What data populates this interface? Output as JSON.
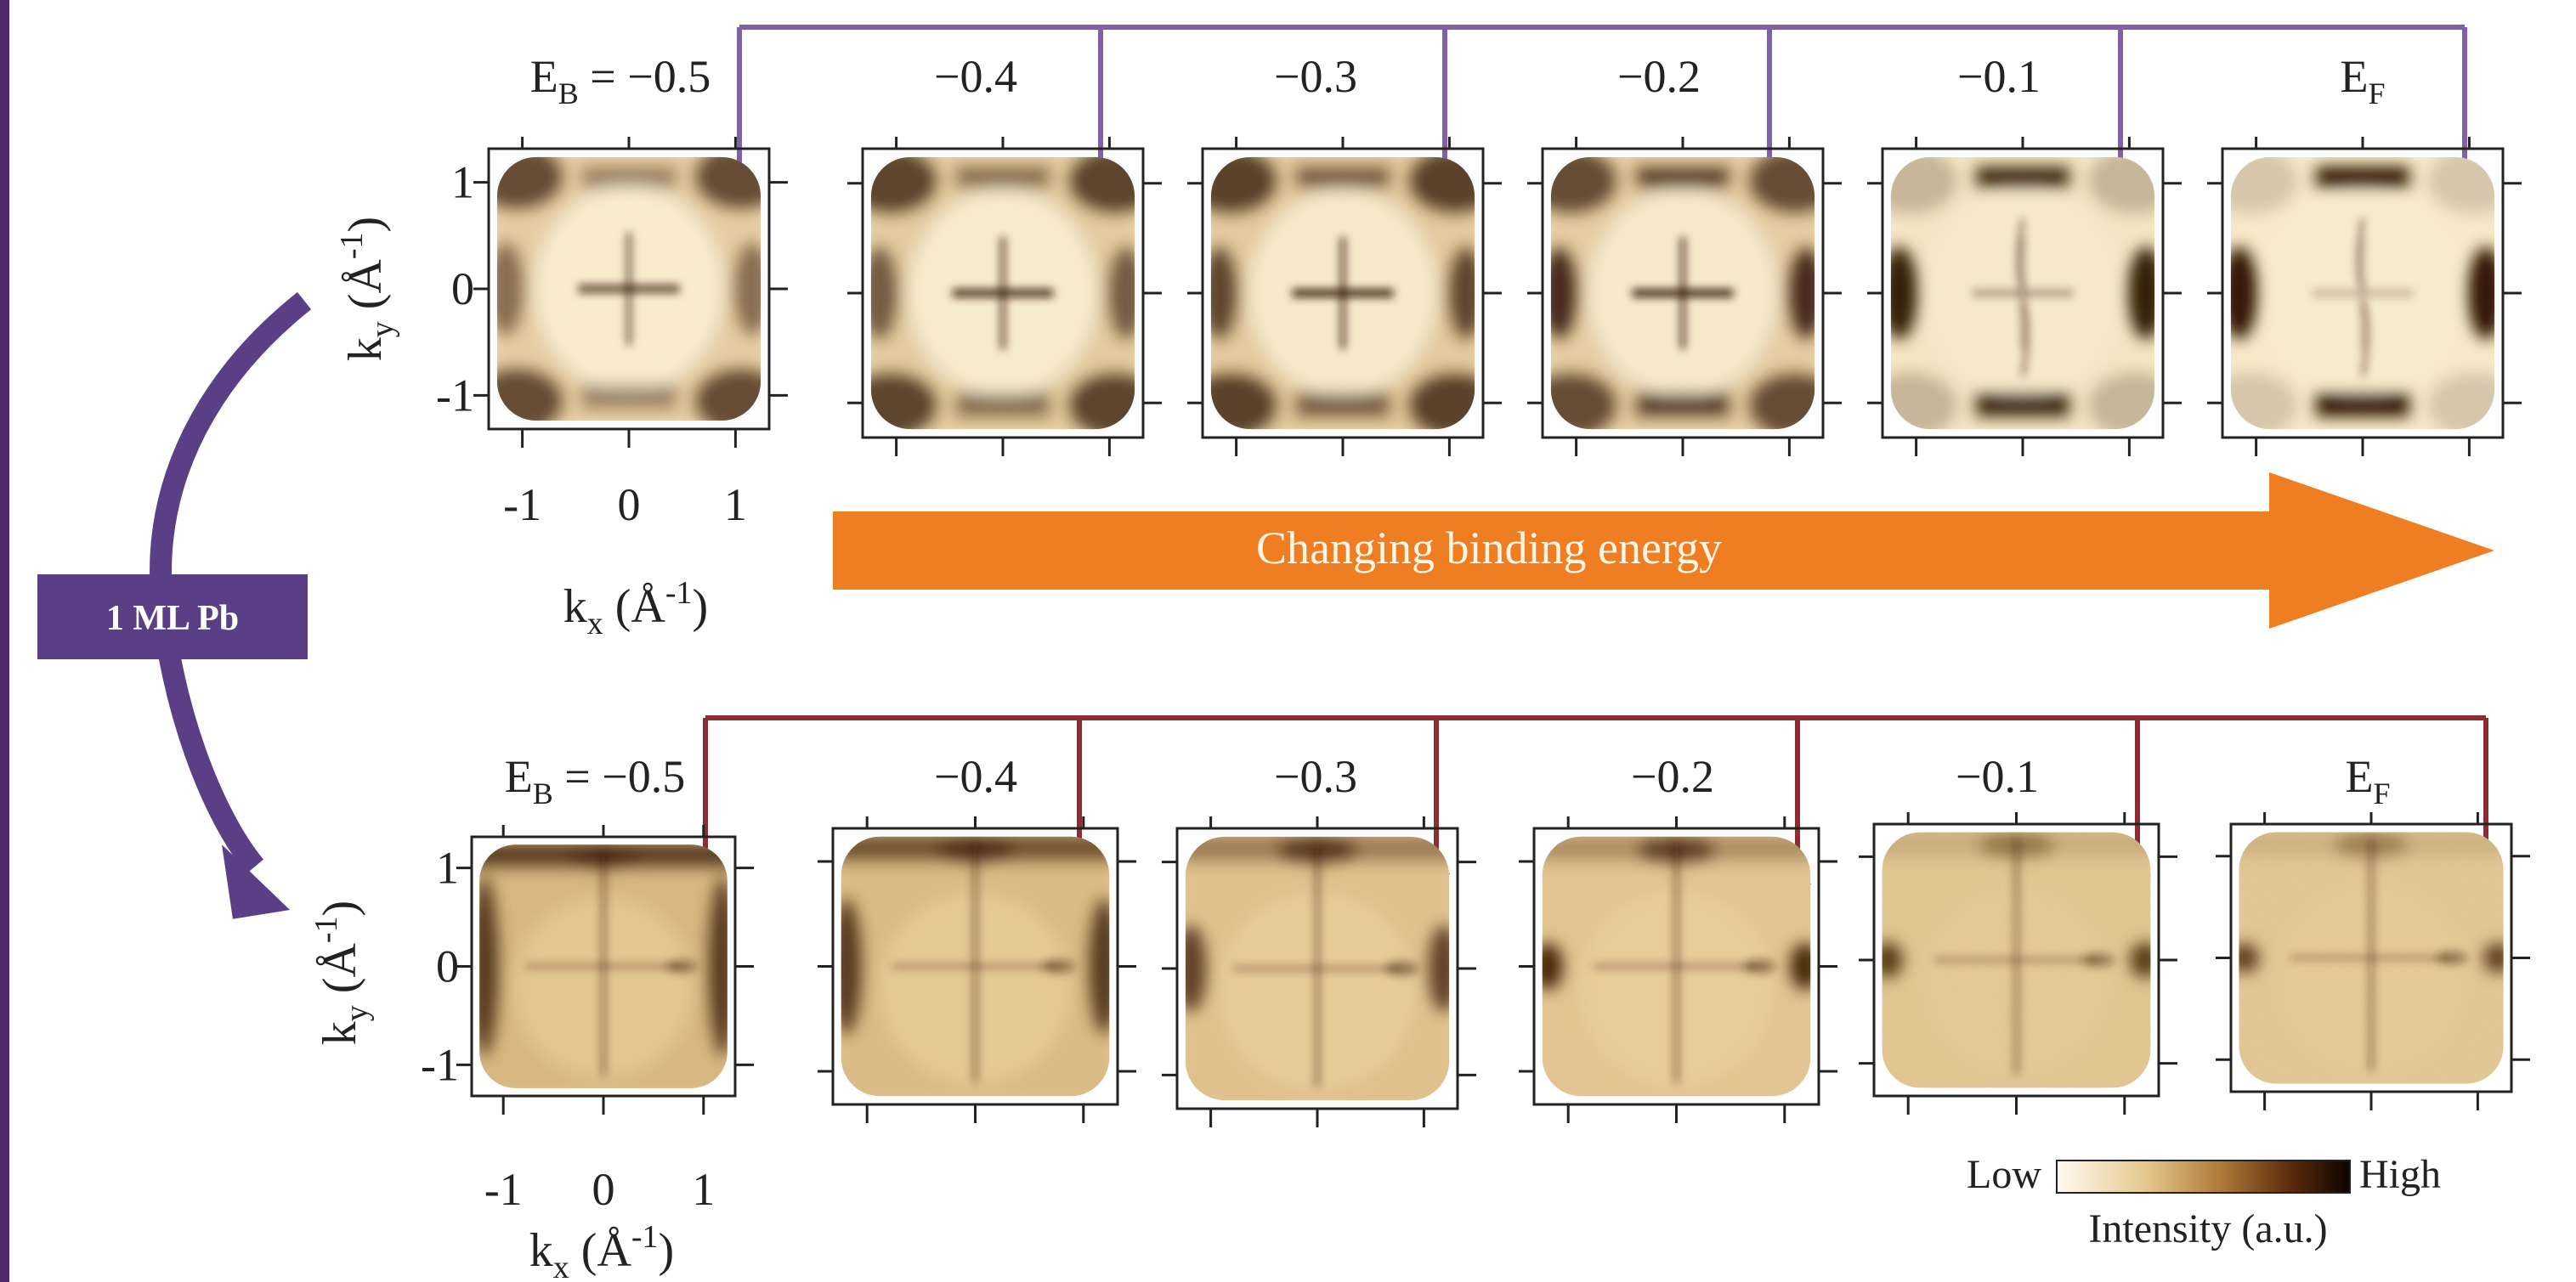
{
  "colors": {
    "left_bar": "#4e2a6b",
    "purple_connector": "#8060a6",
    "purple_arrow": "#5b3f86",
    "red_connector": "#8b2e33",
    "orange_arrow": "#ef7d22",
    "top_map_base": "#fbf1d6",
    "top_map_dark": "#2b1205",
    "bottom_map_base": "#ecd3a3",
    "bottom_map_dark": "#3a1a05",
    "axis": "#222222"
  },
  "side_label": "1 ML Pb",
  "banner_label": "Changing binding energy",
  "energy_label_prefix": "E",
  "energy_label_sub": "B",
  "energy_label_eq": " = ",
  "top_row": {
    "panels": [
      {
        "value": "−0.5"
      },
      {
        "value": "−0.4"
      },
      {
        "value": "−0.3"
      },
      {
        "value": "−0.2"
      },
      {
        "value": "−0.1"
      },
      {
        "value": "E",
        "sub": "F"
      }
    ]
  },
  "bottom_row": {
    "panels": [
      {
        "value": "−0.5"
      },
      {
        "value": "−0.4"
      },
      {
        "value": "−0.3"
      },
      {
        "value": "−0.2"
      },
      {
        "value": "−0.1"
      },
      {
        "value": "E",
        "sub": "F"
      }
    ]
  },
  "axes": {
    "x_ticks": [
      "-1",
      "0",
      "1"
    ],
    "y_ticks": [
      "1",
      "0",
      "-1"
    ],
    "x_label": {
      "base": "k",
      "sub": "x",
      "paren_open": " (Å",
      "sup": "-1",
      "paren_close": ")"
    },
    "y_label": {
      "base": "k",
      "sub": "y",
      "paren_open": " (Å",
      "sup": "-1",
      "paren_close": ")"
    }
  },
  "colorbar": {
    "low_label": "Low",
    "high_label": "High",
    "title": "Intensity (a.u.)"
  }
}
